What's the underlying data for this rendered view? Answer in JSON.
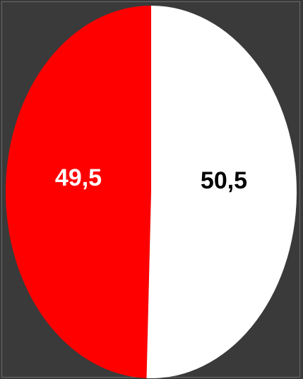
{
  "chart_data": {
    "type": "pie",
    "slices": [
      {
        "label": "49,5",
        "value": 49.5,
        "color": "#ff0000",
        "label_color": "#ffffff"
      },
      {
        "label": "50,5",
        "value": 50.5,
        "color": "#ffffff",
        "label_color": "#000000"
      }
    ]
  },
  "colors": {
    "background": "#3a3a3a",
    "frame_border": "#6b6b6b"
  }
}
